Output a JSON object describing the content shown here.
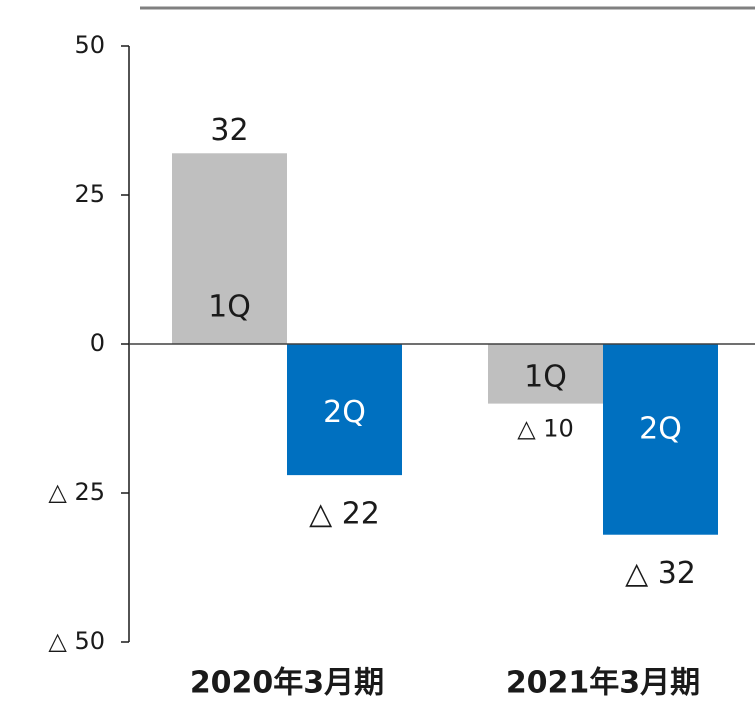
{
  "chart_data": {
    "type": "bar",
    "categories": [
      "2020年3月期",
      "2021年3月期"
    ],
    "series": [
      {
        "name": "1Q",
        "color": "#bfbfbf",
        "values": [
          32,
          -10
        ],
        "value_labels": [
          "32",
          "△ 10"
        ]
      },
      {
        "name": "2Q",
        "color": "#0070c0",
        "values": [
          -22,
          -32
        ],
        "value_labels": [
          "△ 22",
          "△ 32"
        ]
      }
    ],
    "ylim": [
      -50,
      50
    ],
    "yticks": [
      {
        "value": -50,
        "label": "△ 50"
      },
      {
        "value": -25,
        "label": "△ 25"
      },
      0,
      25,
      50
    ]
  }
}
